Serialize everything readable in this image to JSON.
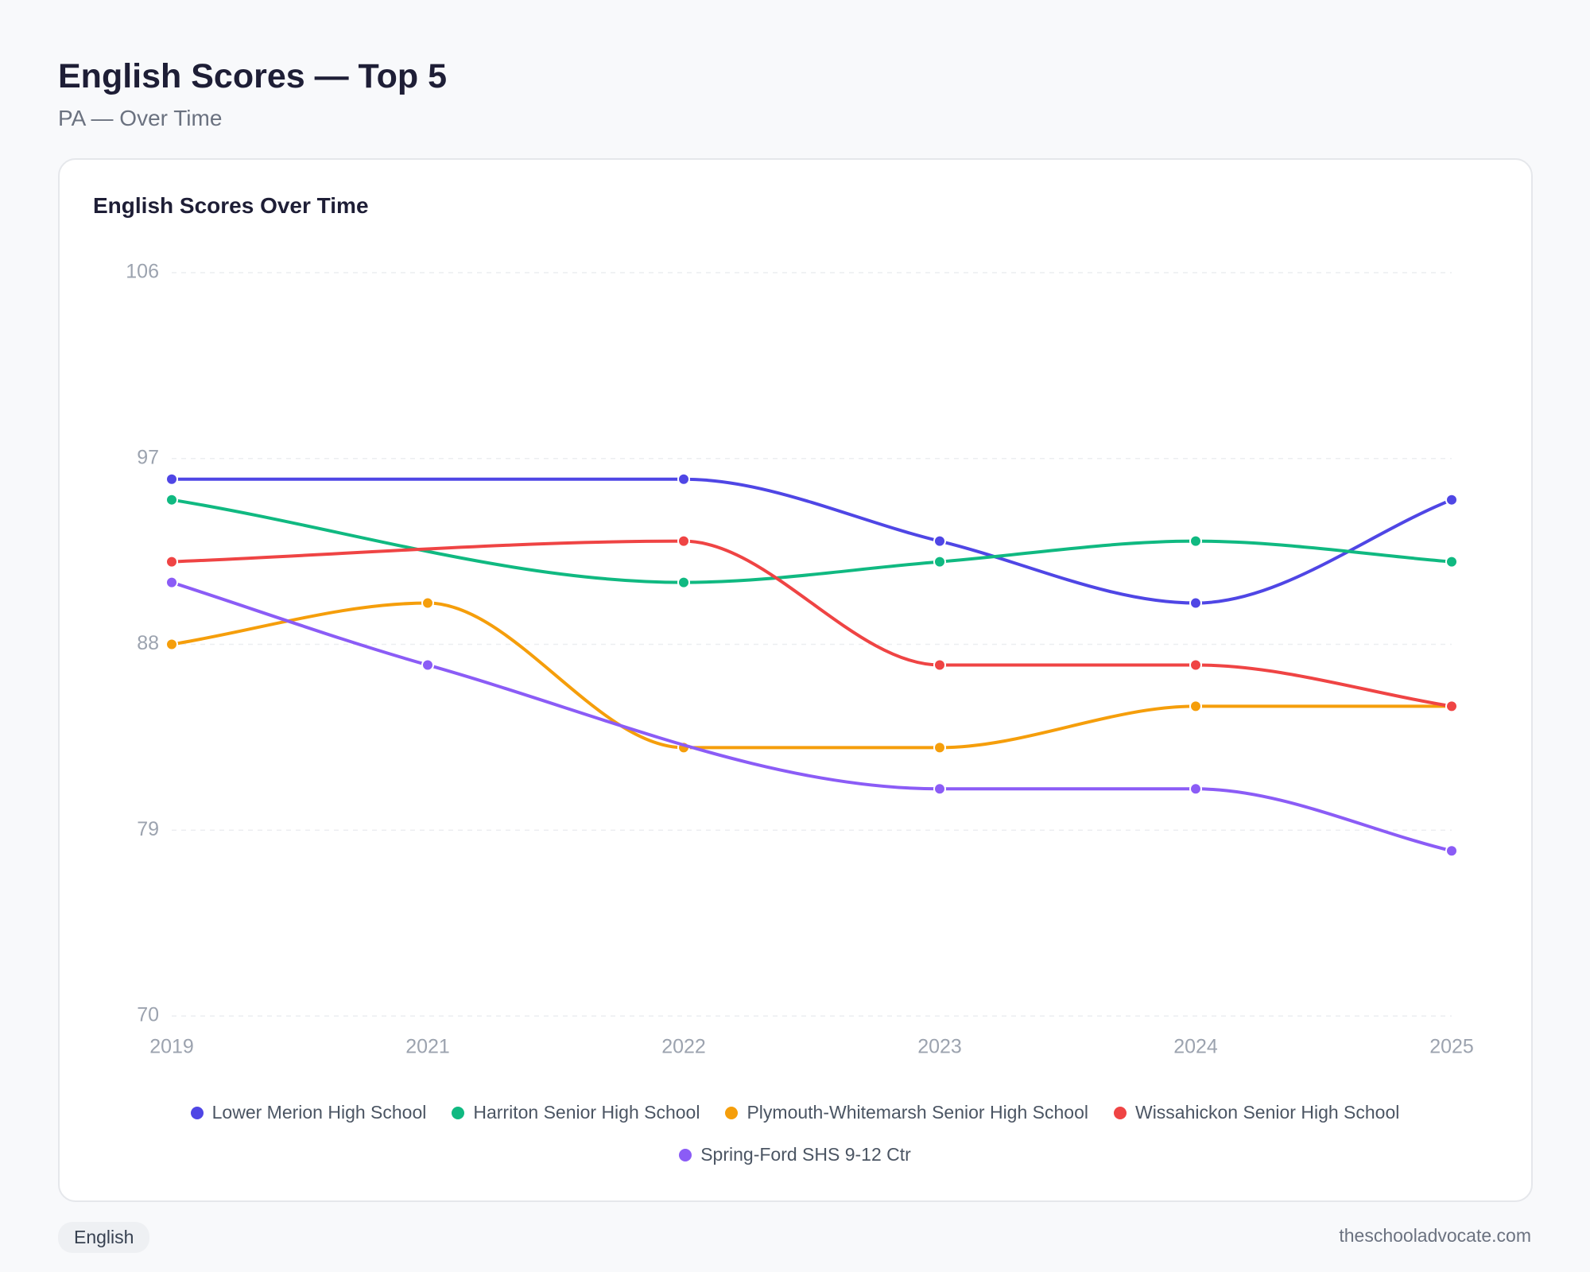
{
  "header": {
    "title": "English Scores — Top 5",
    "subtitle": "PA — Over Time"
  },
  "chart_data": {
    "type": "line",
    "title": "English Scores Over Time",
    "categories": [
      "2019",
      "2021",
      "2022",
      "2023",
      "2024",
      "2025"
    ],
    "series": [
      {
        "name": "Lower Merion High School",
        "color": "#4f46e5",
        "values": [
          96,
          null,
          96,
          93,
          90,
          95
        ]
      },
      {
        "name": "Harriton Senior High School",
        "color": "#10b981",
        "values": [
          95,
          null,
          91,
          92,
          93,
          92
        ]
      },
      {
        "name": "Plymouth-Whitemarsh Senior High School",
        "color": "#f59e0b",
        "values": [
          88,
          90,
          83,
          83,
          85,
          85
        ]
      },
      {
        "name": "Wissahickon Senior High School",
        "color": "#ef4444",
        "values": [
          92,
          null,
          93,
          87,
          87,
          85
        ]
      },
      {
        "name": "Spring-Ford SHS 9-12 Ctr",
        "color": "#8b5cf6",
        "values": [
          91,
          87,
          null,
          81,
          81,
          78
        ]
      }
    ],
    "ylim": [
      70,
      106
    ],
    "yticks": [
      70,
      79,
      88,
      97,
      106
    ],
    "grid": true,
    "span_gaps": true,
    "smooth": true
  },
  "footer": {
    "tag": "English",
    "source": "theschooladvocate.com"
  }
}
